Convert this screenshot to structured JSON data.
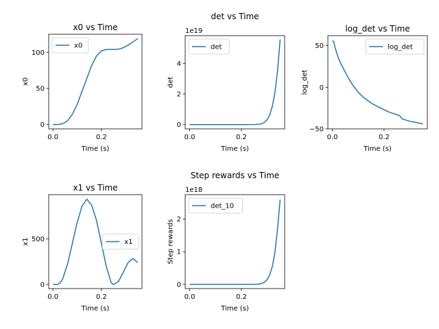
{
  "chart_data": [
    {
      "type": "line",
      "title": "x0 vs Time",
      "xlabel": "Time (s)",
      "ylabel": "x0",
      "xlim": [
        -0.0175,
        0.3675
      ],
      "ylim": [
        -6,
        125
      ],
      "xticks": [
        {
          "v": 0.0,
          "label": "0.0"
        },
        {
          "v": 0.2,
          "label": "0.2"
        }
      ],
      "yticks": [
        {
          "v": 0,
          "label": "0"
        },
        {
          "v": 50,
          "label": "50"
        },
        {
          "v": 100,
          "label": "100"
        }
      ],
      "offset": "",
      "legend": "top-left",
      "color": "#1f77b4",
      "series": [
        {
          "name": "x0",
          "x": [
            0,
            0.02,
            0.04,
            0.06,
            0.08,
            0.1,
            0.12,
            0.14,
            0.16,
            0.18,
            0.2,
            0.22,
            0.24,
            0.26,
            0.28,
            0.3,
            0.32,
            0.35
          ],
          "y": [
            0,
            0,
            1,
            5,
            14,
            28,
            46,
            64,
            82,
            95,
            102,
            104,
            104,
            104,
            105,
            108,
            112,
            119
          ]
        }
      ]
    },
    {
      "type": "line",
      "title": "det vs Time",
      "xlabel": "Time (s)",
      "ylabel": "det",
      "xlim": [
        -0.0175,
        0.3675
      ],
      "ylim": [
        -0.28,
        5.8
      ],
      "xticks": [
        {
          "v": 0.0,
          "label": "0.0"
        },
        {
          "v": 0.2,
          "label": "0.2"
        }
      ],
      "yticks": [
        {
          "v": 0,
          "label": "0"
        },
        {
          "v": 2,
          "label": "2"
        },
        {
          "v": 4,
          "label": "4"
        }
      ],
      "offset": "1e19",
      "legend": "top-left",
      "color": "#1f77b4",
      "series": [
        {
          "name": "det",
          "x": [
            0,
            0.05,
            0.1,
            0.15,
            0.2,
            0.25,
            0.27,
            0.28,
            0.29,
            0.3,
            0.31,
            0.32,
            0.33,
            0.34,
            0.35
          ],
          "y": [
            0,
            0,
            0,
            0,
            0,
            0.005,
            0.02,
            0.06,
            0.15,
            0.32,
            0.65,
            1.2,
            2.1,
            3.5,
            5.55
          ]
        }
      ]
    },
    {
      "type": "line",
      "title": "log_det vs Time",
      "xlabel": "Time (s)",
      "ylabel": "log_det",
      "xlim": [
        -0.0175,
        0.3675
      ],
      "ylim": [
        -50,
        62
      ],
      "xticks": [
        {
          "v": 0.0,
          "label": "0.0"
        },
        {
          "v": 0.2,
          "label": "0.2"
        }
      ],
      "yticks": [
        {
          "v": -50,
          "label": "−50"
        },
        {
          "v": 0,
          "label": "0"
        },
        {
          "v": 50,
          "label": "50"
        }
      ],
      "offset": "",
      "legend": "top-right",
      "color": "#1f77b4",
      "series": [
        {
          "name": "log_det",
          "x": [
            0,
            0.005,
            0.01,
            0.02,
            0.03,
            0.04,
            0.05,
            0.06,
            0.08,
            0.1,
            0.12,
            0.15,
            0.18,
            0.2,
            0.22,
            0.25,
            0.26,
            0.27,
            0.3,
            0.32,
            0.35
          ],
          "y": [
            56,
            55,
            48,
            38,
            30,
            24,
            18,
            12,
            2,
            -6,
            -12,
            -19,
            -24,
            -27,
            -30,
            -33,
            -34,
            -38,
            -41,
            -42,
            -44
          ]
        }
      ]
    },
    {
      "type": "line",
      "title": "x1 vs Time",
      "xlabel": "Time (s)",
      "ylabel": "x1",
      "xlim": [
        -0.0175,
        0.3675
      ],
      "ylim": [
        -45,
        985
      ],
      "xticks": [
        {
          "v": 0.0,
          "label": "0.0"
        },
        {
          "v": 0.2,
          "label": "0.2"
        }
      ],
      "yticks": [
        {
          "v": 0,
          "label": "0"
        },
        {
          "v": 500,
          "label": "500"
        }
      ],
      "offset": "",
      "legend": "center-right",
      "color": "#1f77b4",
      "series": [
        {
          "name": "x1",
          "x": [
            0,
            0.02,
            0.03,
            0.04,
            0.06,
            0.08,
            0.1,
            0.12,
            0.14,
            0.16,
            0.18,
            0.2,
            0.22,
            0.24,
            0.25,
            0.27,
            0.29,
            0.31,
            0.33,
            0.35
          ],
          "y": [
            0,
            0,
            20,
            60,
            220,
            450,
            680,
            860,
            935,
            870,
            700,
            450,
            200,
            20,
            0,
            30,
            130,
            240,
            285,
            240
          ]
        }
      ]
    },
    {
      "type": "line",
      "title": "Step rewards vs Time",
      "xlabel": "Time (s)",
      "ylabel": "Step rewards",
      "xlim": [
        -0.0175,
        0.3675
      ],
      "ylim": [
        -0.13,
        2.75
      ],
      "xticks": [
        {
          "v": 0.0,
          "label": "0.0"
        },
        {
          "v": 0.2,
          "label": "0.2"
        }
      ],
      "yticks": [
        {
          "v": 0,
          "label": "0"
        },
        {
          "v": 1,
          "label": "1"
        },
        {
          "v": 2,
          "label": "2"
        }
      ],
      "offset": "1e18",
      "legend": "top-left",
      "color": "#1f77b4",
      "series": [
        {
          "name": "det_10",
          "x": [
            0,
            0.05,
            0.1,
            0.15,
            0.2,
            0.25,
            0.27,
            0.28,
            0.29,
            0.3,
            0.31,
            0.32,
            0.33,
            0.34,
            0.35
          ],
          "y": [
            0,
            0,
            0,
            0,
            0,
            0.002,
            0.01,
            0.03,
            0.07,
            0.15,
            0.3,
            0.55,
            1.0,
            1.7,
            2.6
          ]
        }
      ]
    }
  ]
}
